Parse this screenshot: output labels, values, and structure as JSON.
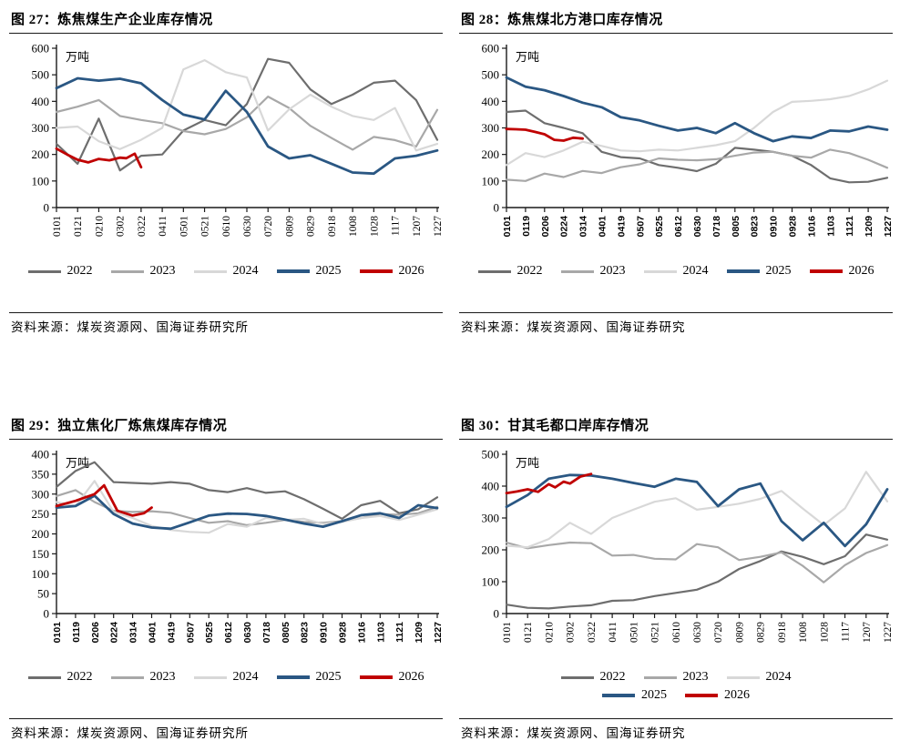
{
  "page": {
    "background": "#ffffff"
  },
  "chart_data": [
    {
      "id": "fig27",
      "title": "图 27：炼焦煤生产企业库存情况",
      "source": "资料来源：煤炭资源网、国海证券研究所",
      "type": "line",
      "unit_label": "万吨",
      "ylim": [
        0,
        600
      ],
      "ystep": 100,
      "grid": false,
      "legend_position": "bottom",
      "legend_wrap": false,
      "tick_font": "serif",
      "categories": [
        "0101",
        "0121",
        "0210",
        "0302",
        "0322",
        "0411",
        "0501",
        "0521",
        "0610",
        "0630",
        "0720",
        "0809",
        "0829",
        "0918",
        "1008",
        "1028",
        "1117",
        "1207",
        "1227"
      ],
      "series": [
        {
          "name": "2022",
          "color": "#6e6e6e",
          "width": 2.2,
          "values": [
            240,
            165,
            335,
            140,
            195,
            200,
            290,
            330,
            310,
            390,
            560,
            545,
            445,
            390,
            425,
            470,
            478,
            405,
            255
          ]
        },
        {
          "name": "2023",
          "color": "#a8a8a8",
          "width": 2.2,
          "values": [
            360,
            380,
            405,
            345,
            330,
            318,
            288,
            276,
            296,
            340,
            418,
            375,
            308,
            262,
            218,
            266,
            254,
            230,
            368
          ]
        },
        {
          "name": "2024",
          "color": "#d8d8d8",
          "width": 2.2,
          "values": [
            300,
            305,
            250,
            220,
            255,
            300,
            520,
            555,
            510,
            490,
            290,
            370,
            425,
            380,
            345,
            330,
            375,
            215,
            240
          ]
        },
        {
          "name": "2025",
          "color": "#2a5783",
          "width": 2.8,
          "values": [
            450,
            487,
            478,
            485,
            468,
            405,
            350,
            332,
            440,
            360,
            230,
            185,
            197,
            165,
            132,
            128,
            185,
            195,
            215
          ]
        },
        {
          "name": "2026",
          "color": "#c00000",
          "width": 2.8,
          "x": [
            0,
            0.5,
            1,
            1.5,
            2,
            2.5,
            3,
            3.3,
            3.7,
            4
          ],
          "values": [
            222,
            200,
            180,
            170,
            183,
            178,
            188,
            186,
            203,
            152
          ]
        }
      ]
    },
    {
      "id": "fig28",
      "title": "图 28：炼焦煤北方港口库存情况",
      "source": "资料来源：煤炭资源网、国海证券研究",
      "type": "line",
      "unit_label": "万吨",
      "ylim": [
        0,
        600
      ],
      "ystep": 100,
      "grid": false,
      "legend_position": "bottom",
      "legend_wrap": false,
      "tick_font": "sans",
      "categories": [
        "0101",
        "0119",
        "0206",
        "0224",
        "0314",
        "0401",
        "0419",
        "0507",
        "0525",
        "0612",
        "0630",
        "0718",
        "0805",
        "0823",
        "0910",
        "0928",
        "1016",
        "1103",
        "1121",
        "1209",
        "1227"
      ],
      "series": [
        {
          "name": "2022",
          "color": "#6e6e6e",
          "width": 2.2,
          "values": [
            360,
            365,
            318,
            300,
            280,
            210,
            190,
            185,
            160,
            150,
            137,
            165,
            225,
            218,
            210,
            195,
            160,
            110,
            95,
            97,
            112
          ]
        },
        {
          "name": "2023",
          "color": "#a8a8a8",
          "width": 2.2,
          "values": [
            105,
            100,
            128,
            115,
            138,
            130,
            152,
            163,
            185,
            180,
            178,
            182,
            195,
            207,
            210,
            195,
            188,
            218,
            205,
            180,
            150
          ]
        },
        {
          "name": "2024",
          "color": "#d8d8d8",
          "width": 2.2,
          "values": [
            160,
            205,
            190,
            215,
            248,
            232,
            215,
            212,
            218,
            215,
            225,
            235,
            250,
            300,
            360,
            398,
            402,
            408,
            420,
            445,
            478
          ]
        },
        {
          "name": "2025",
          "color": "#2a5783",
          "width": 2.8,
          "values": [
            490,
            455,
            442,
            420,
            395,
            378,
            340,
            328,
            308,
            290,
            300,
            280,
            318,
            280,
            250,
            268,
            262,
            290,
            287,
            305,
            293
          ]
        },
        {
          "name": "2026",
          "color": "#c00000",
          "width": 2.8,
          "x": [
            0,
            0.5,
            1,
            1.5,
            2,
            2.5,
            3,
            3.5,
            4
          ],
          "values": [
            296,
            295,
            293,
            285,
            276,
            255,
            252,
            263,
            260
          ]
        }
      ]
    },
    {
      "id": "fig29",
      "title": "图 29：独立焦化厂炼焦煤库存情况",
      "source": "资料来源：煤炭资源网、国海证券研究所",
      "type": "line",
      "unit_label": "万吨",
      "ylim": [
        0,
        400
      ],
      "ystep": 50,
      "grid": false,
      "legend_position": "bottom",
      "legend_wrap": false,
      "tick_font": "sans",
      "categories": [
        "0101",
        "0119",
        "0206",
        "0224",
        "0314",
        "0401",
        "0419",
        "0507",
        "0525",
        "0612",
        "0630",
        "0718",
        "0805",
        "0823",
        "0910",
        "0928",
        "1016",
        "1103",
        "1121",
        "1209",
        "1227"
      ],
      "series": [
        {
          "name": "2022",
          "color": "#6e6e6e",
          "width": 2.2,
          "values": [
            318,
            358,
            380,
            330,
            328,
            326,
            330,
            326,
            310,
            305,
            315,
            303,
            307,
            287,
            263,
            238,
            272,
            283,
            252,
            262,
            292
          ]
        },
        {
          "name": "2023",
          "color": "#a8a8a8",
          "width": 2.2,
          "values": [
            295,
            310,
            280,
            258,
            255,
            257,
            253,
            240,
            228,
            232,
            222,
            228,
            235,
            230,
            228,
            232,
            240,
            250,
            248,
            252,
            268
          ]
        },
        {
          "name": "2024",
          "color": "#d8d8d8",
          "width": 2.2,
          "values": [
            280,
            270,
            333,
            255,
            240,
            220,
            210,
            205,
            203,
            225,
            218,
            240,
            235,
            238,
            225,
            230,
            240,
            245,
            235,
            248,
            262
          ]
        },
        {
          "name": "2025",
          "color": "#2a5783",
          "width": 2.8,
          "values": [
            266,
            270,
            296,
            250,
            226,
            216,
            213,
            229,
            246,
            251,
            250,
            245,
            236,
            226,
            218,
            232,
            247,
            252,
            240,
            272,
            265
          ]
        },
        {
          "name": "2026",
          "color": "#c00000",
          "width": 2.8,
          "x": [
            0,
            1,
            2,
            2.5,
            3.2,
            4,
            4.6,
            5
          ],
          "values": [
            270,
            283,
            300,
            322,
            258,
            246,
            252,
            266
          ]
        }
      ]
    },
    {
      "id": "fig30",
      "title": "图 30：甘其毛都口岸库存情况",
      "source": "资料来源：煤炭资源网、国海证券研究",
      "type": "line",
      "unit_label": "万吨",
      "ylim": [
        0,
        500
      ],
      "ystep": 100,
      "grid": false,
      "legend_position": "bottom",
      "legend_wrap": true,
      "tick_font": "serif",
      "categories": [
        "0101",
        "0121",
        "0210",
        "0302",
        "0322",
        "0411",
        "0501",
        "0521",
        "0610",
        "0630",
        "0720",
        "0809",
        "0829",
        "0918",
        "1008",
        "1028",
        "1117",
        "1207",
        "1227"
      ],
      "series": [
        {
          "name": "2022",
          "color": "#6e6e6e",
          "width": 2.2,
          "values": [
            28,
            18,
            16,
            22,
            26,
            40,
            42,
            55,
            65,
            75,
            100,
            140,
            165,
            195,
            178,
            155,
            180,
            248,
            232
          ]
        },
        {
          "name": "2023",
          "color": "#a8a8a8",
          "width": 2.2,
          "values": [
            223,
            205,
            215,
            223,
            221,
            182,
            184,
            172,
            170,
            218,
            208,
            168,
            178,
            192,
            150,
            98,
            152,
            190,
            215
          ]
        },
        {
          "name": "2024",
          "color": "#d8d8d8",
          "width": 2.2,
          "values": [
            213,
            208,
            234,
            285,
            250,
            300,
            326,
            351,
            362,
            326,
            335,
            345,
            360,
            385,
            330,
            278,
            330,
            445,
            352
          ]
        },
        {
          "name": "2025",
          "color": "#2a5783",
          "width": 2.8,
          "values": [
            335,
            372,
            423,
            435,
            433,
            423,
            410,
            398,
            423,
            413,
            337,
            390,
            408,
            290,
            230,
            285,
            212,
            280,
            390
          ]
        },
        {
          "name": "2026",
          "color": "#c00000",
          "width": 2.8,
          "x": [
            0,
            0.5,
            1,
            1.5,
            2,
            2.3,
            2.7,
            3,
            3.5,
            4
          ],
          "values": [
            378,
            383,
            390,
            382,
            406,
            396,
            414,
            408,
            430,
            438
          ]
        }
      ]
    }
  ]
}
